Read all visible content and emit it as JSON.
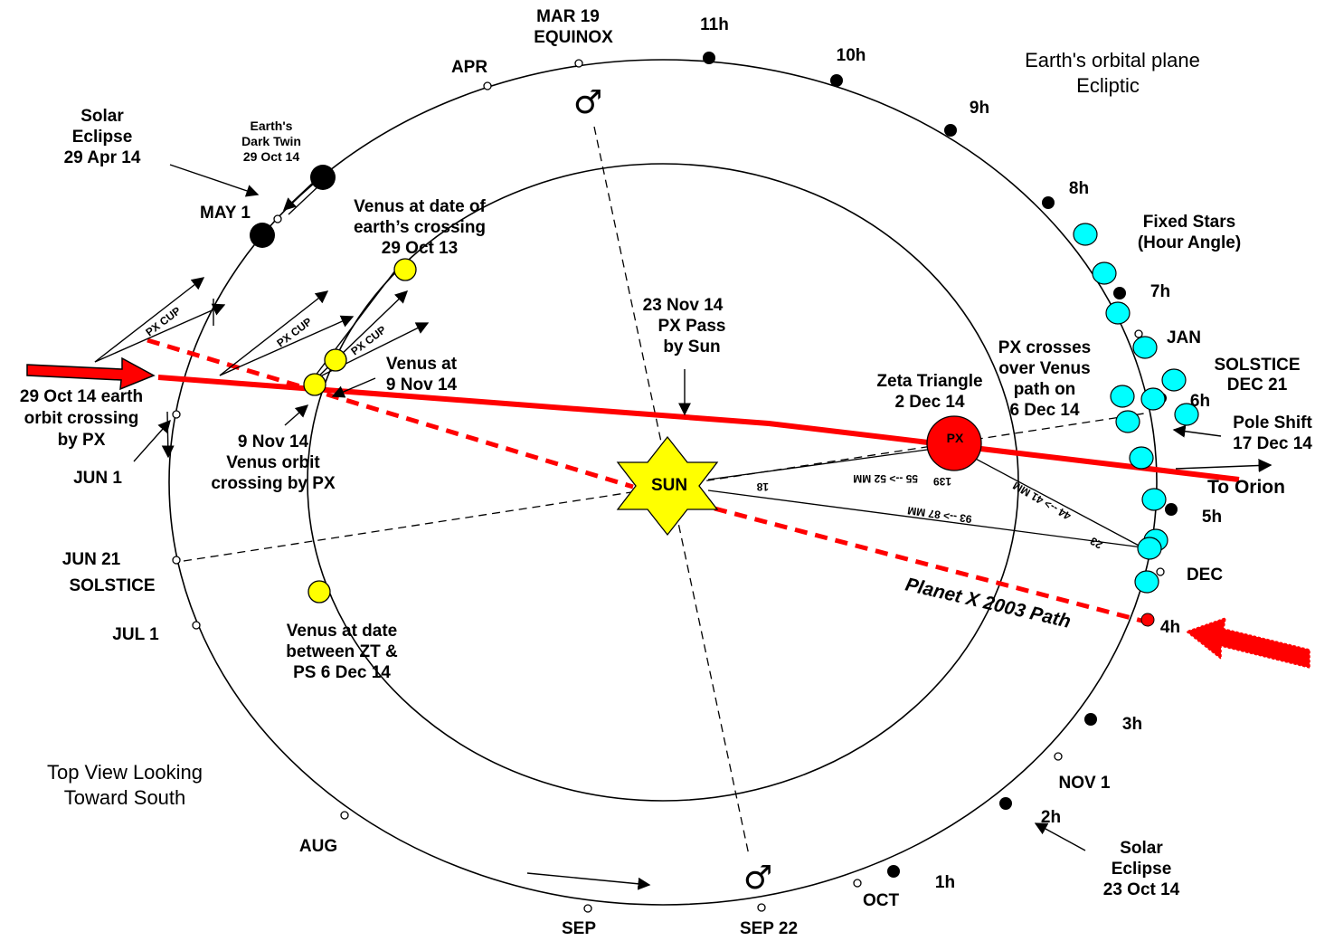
{
  "colors": {
    "px_path": "#ff0000",
    "sun": "#ffff00",
    "venus": "#ffff00",
    "fixed_star": "#00ffff",
    "planet_x": "#ff0000",
    "line": "#000000"
  },
  "header": {
    "plane_line1": "Earth's orbital plane",
    "plane_line2": "Ecliptic",
    "mar19_line1": "MAR 19",
    "mar19_line2": "EQUINOX"
  },
  "months": {
    "apr": "APR",
    "may1": "MAY 1",
    "jun1": "JUN 1",
    "jun21": "JUN 21",
    "solstice": "SOLSTICE",
    "jul1": "JUL 1",
    "aug": "AUG",
    "sep": "SEP",
    "sep22": "SEP 22",
    "oct": "OCT",
    "nov1": "NOV 1",
    "dec": "DEC",
    "jan": "JAN",
    "solstice_dec_line1": "SOLSTICE",
    "solstice_dec_line2": "DEC 21"
  },
  "hours": {
    "h11": "11h",
    "h10": "10h",
    "h9": "9h",
    "h8": "8h",
    "h7": "7h",
    "h6": "6h",
    "h5": "5h",
    "h4": "4h",
    "h3": "3h",
    "h2": "2h",
    "h1": "1h"
  },
  "labels": {
    "solar_eclipse_apr_1": "Solar",
    "solar_eclipse_apr_2": "Eclipse",
    "solar_eclipse_apr_3": "29  Apr 14",
    "dark_twin_1": "Earth's",
    "dark_twin_2": "Dark Twin",
    "dark_twin_3": "29 Oct 14",
    "venus_crossing_1": "Venus at date of",
    "venus_crossing_2": "earth’s crossing",
    "venus_crossing_3": "29 Oct 13",
    "fixed_stars_1": "Fixed Stars",
    "fixed_stars_2": "(Hour Angle)",
    "px_cup": "PX CUP",
    "earth_crossing_1": "29 Oct 14 earth",
    "earth_crossing_2": "orbit crossing",
    "earth_crossing_3": "by PX",
    "venus_nov9_1": "Venus at",
    "venus_nov9_2": "9 Nov 14",
    "venus_orbit_1": "9 Nov 14",
    "venus_orbit_2": "Venus orbit",
    "venus_orbit_3": "crossing by PX",
    "px_pass_1": "23 Nov 14",
    "px_pass_2": "PX Pass",
    "px_pass_3": "by Sun",
    "px_crosses_1": "PX crosses",
    "px_crosses_2": "over Venus",
    "px_crosses_3": "path on",
    "px_crosses_4": "6 Dec 14",
    "zeta_1": "Zeta Triangle",
    "zeta_2": "2 Dec 14",
    "pole_shift_1": "Pole Shift",
    "pole_shift_2": "17 Dec 14",
    "to_orion": "To Orion",
    "sun": "SUN",
    "px": "PX",
    "planet_x_path": "Planet X 2003 Path",
    "venus_zt_1": "Venus at date",
    "venus_zt_2": "between ZT &",
    "venus_zt_3": "PS 6 Dec 14",
    "top_view_1": "Top View Looking",
    "top_view_2": "Toward South",
    "solar_eclipse_oct_1": "Solar",
    "solar_eclipse_oct_2": "Eclipse",
    "solar_eclipse_oct_3": "23 Oct 14",
    "dist_55_52": "55 --> 52 MM",
    "dist_18": "18",
    "dist_139": "139",
    "dist_44_41": "44 --> 41 MM",
    "dist_23": "23",
    "dist_93_87": "93 --> 87 MM",
    "mars_symbol": "♂"
  }
}
